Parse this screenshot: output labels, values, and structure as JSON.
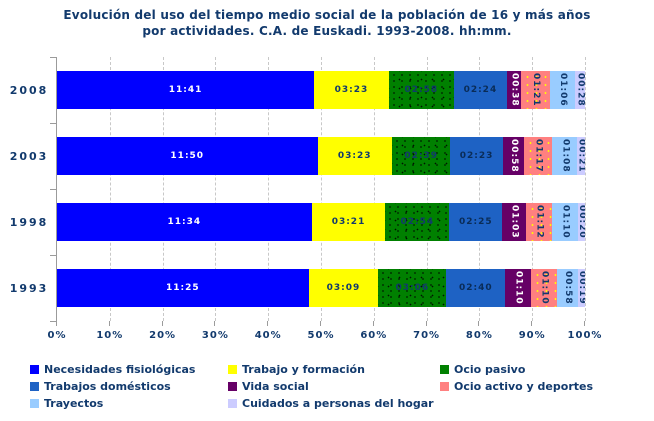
{
  "title": {
    "line1": "Evolución del uso del tiempo medio social de la población de 16 y más años",
    "line2": "por actividades. C.A. de Euskadi. 1993-2008. hh:mm."
  },
  "chart_data": {
    "type": "bar",
    "subtype": "stacked-horizontal-100pct",
    "title": "Evolución del uso del tiempo medio social de la población de 16 y más años por actividades. C.A. de Euskadi. 1993-2008. hh:mm.",
    "value_format": "hh:mm",
    "categories": [
      "2008",
      "2003",
      "1998",
      "1993"
    ],
    "series": [
      {
        "name": "Necesidades fisiológicas",
        "color": "#0000ff",
        "label_color": "#ffffff",
        "pattern": null,
        "values": [
          "11:41",
          "11:50",
          "11:34",
          "11:25"
        ]
      },
      {
        "name": "Trabajo y formación",
        "color": "#ffff00",
        "label_color": "#123a6d",
        "pattern": null,
        "values": [
          "03:23",
          "03:23",
          "03:21",
          "03:09"
        ]
      },
      {
        "name": "Ocio pasivo",
        "color": "#008000",
        "label_color": "#123a6d",
        "pattern": "black-dots",
        "values": [
          "02:58",
          "02:39",
          "02:54",
          "03:06"
        ]
      },
      {
        "name": "Trabajos domésticos",
        "color": "#1e62c4",
        "label_color": "#0a2c57",
        "pattern": null,
        "values": [
          "02:24",
          "02:23",
          "02:25",
          "02:40"
        ]
      },
      {
        "name": "Vida social",
        "color": "#660066",
        "label_color": "#ffffff",
        "pattern": null,
        "values": [
          "00:38",
          "00:58",
          "01:03",
          "01:10"
        ]
      },
      {
        "name": "Ocio activo y deportes",
        "color": "#ff8080",
        "label_color": "#123a6d",
        "pattern": "yellow-dots",
        "values": [
          "01:21",
          "01:17",
          "01:12",
          "01:10"
        ]
      },
      {
        "name": "Trayectos",
        "color": "#99ccff",
        "label_color": "#123a6d",
        "pattern": null,
        "values": [
          "01:06",
          "01:08",
          "01:10",
          "00:58"
        ]
      },
      {
        "name": "Cuidados a personas del hogar",
        "color": "#ccccff",
        "label_color": "#123a6d",
        "pattern": null,
        "values": [
          "00:28",
          "00:21",
          "00:20",
          "00:19"
        ]
      }
    ],
    "x_axis": {
      "ticks": [
        "0%",
        "10%",
        "20%",
        "30%",
        "40%",
        "50%",
        "60%",
        "70%",
        "80%",
        "90%",
        "100%"
      ],
      "range": [
        0,
        100
      ],
      "gridlines": "dashed"
    },
    "legend_position": "bottom"
  }
}
